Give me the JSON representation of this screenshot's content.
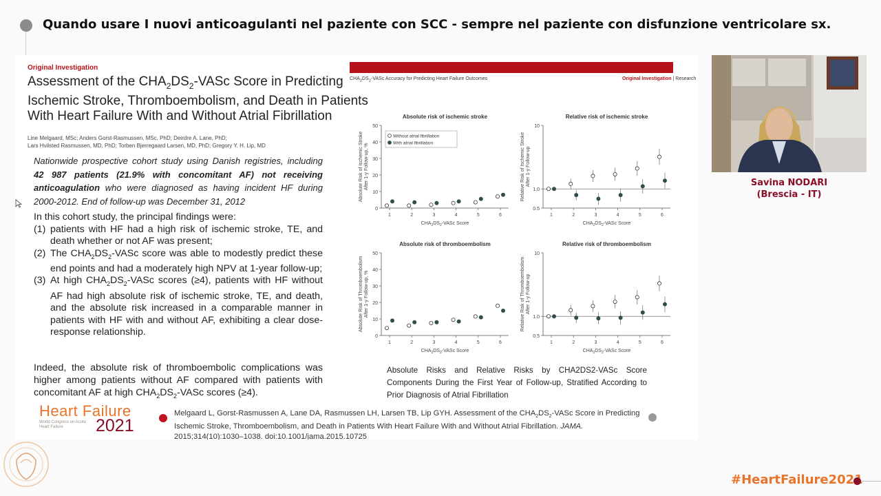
{
  "header": {
    "title": "Quando usare I nuovi anticoagulanti nel paziente con SCC - sempre nel paziente con disfunzione ventricolare sx."
  },
  "article": {
    "label": "Original Investigation",
    "title_parts": [
      "Assessment of the CHA",
      "2",
      "DS",
      "2",
      "-VASc Score in Predicting Ischemic Stroke, Thromboembolism, and Death in Patients With Heart Failure With and Without Atrial Fibrillation"
    ],
    "authors_line1": "Line Melgaard, MSc; Anders Gorst-Rasmussen, MSc, PhD; Deirdre A. Lane, PhD;",
    "authors_line2": "Lars Hvilsted Rasmussen, MD, PhD; Torben Bjerregaard Larsen, MD, PhD; Gregory Y. H. Lip, MD"
  },
  "summary": {
    "pre": "Nationwide prospective cohort study using Danish registries, including ",
    "bold1": "42 987 patients (21.9% with concomitant AF)",
    "mid": " ",
    "bold2": "not receiving anticoagulation",
    "post": " who were diagnosed as having incident HF during 2000-2012. End of follow-up was December 31, 2012"
  },
  "findings": {
    "intro": "In this cohort study, the principal findings were:",
    "items": [
      {
        "num": "(1)",
        "text": "patients with HF had a high risk of ischemic stroke, TE, and death whether or not AF was present;"
      },
      {
        "num": "(2)",
        "text_pre": "The CHA",
        "sub1": "2",
        "mid1": "DS",
        "sub2": "2",
        "text_post": "-VASc score was able to modestly predict these end points and had a moderately high NPV at 1-year follow-up;"
      },
      {
        "num": "(3)",
        "text_pre": "At high CHA",
        "sub1": "2",
        "mid1": "DS",
        "sub2": "2",
        "text_post": "-VASc scores (≥4), patients with HF without AF had high absolute risk of ischemic stroke, TE, and death, and the absolute risk increased in a comparable manner in patients with HF with and without AF, exhibiting a clear dose-response relationship."
      }
    ]
  },
  "indeed": {
    "pre": "Indeed, the absolute risk of thromboembolic complications was higher among patients without AF compared with patients with concomitant AF at high CHA",
    "sub1": "2",
    "mid": "DS",
    "sub2": "2",
    "post": "-VASc scores (≥4)."
  },
  "logo": {
    "word1": "Heart",
    "word2": "Failure",
    "subtitle": "World Congress on Acute Heart Failure",
    "year": "2021"
  },
  "reference": {
    "pre": "Melgaard L, Gorst-Rasmussen A, Lane DA, Rasmussen LH, Larsen TB, Lip GYH. Assessment of the CHA",
    "sub1": "2",
    "mid": "DS",
    "sub2": "2",
    "post": "-VASc Score in Predicting Ischemic Stroke, Thromboembolism, and Death in Patients With Heart Failure With and Without Atrial Fibrillation. ",
    "journal": "JAMA.",
    "tail": " 2015;314(10):1030–1038. doi:10.1001/jama.2015.10725"
  },
  "figure": {
    "header_left_pre": "CHA",
    "header_left_sub1": "2",
    "header_left_mid": "DS",
    "header_left_sub2": "2",
    "header_left_post": "-VASc Accuracy for Predicting Heart Failure Outcomes",
    "header_right_red": "Original Investigation",
    "header_right_black": "Research",
    "caption": "Absolute Risks and Relative Risks by CHA2DS2-VASc Score Components During the First Year of Follow-up, Stratified According to Prior Diagnosis of Atrial Fibrillation",
    "legend_without": "Without atrial fibrillation",
    "legend_with": "With atrial fibrillation",
    "xlabel": "CHA2DS2-VASc Score"
  },
  "chart_data": [
    {
      "type": "scatter",
      "title": "Absolute risk of ischemic stroke",
      "xlabel": "CHA2DS2-VASc Score",
      "ylabel": "Absolute Risk of Ischemic Stroke After 1-y Follow-up, %",
      "x": [
        1,
        2,
        3,
        4,
        5,
        6
      ],
      "ylim": [
        0,
        50
      ],
      "yticks": [
        0,
        10,
        20,
        30,
        40,
        50
      ],
      "series": [
        {
          "name": "Without atrial fibrillation",
          "values": [
            1.5,
            1.5,
            2,
            3,
            3.5,
            7
          ]
        },
        {
          "name": "With atrial fibrillation",
          "values": [
            4,
            3.5,
            3,
            4,
            5.5,
            8
          ]
        }
      ]
    },
    {
      "type": "scatter",
      "title": "Relative risk of ischemic stroke",
      "xlabel": "CHA2DS2-VASc Score",
      "ylabel": "Relative Risk of Ischemic Stroke After 1-y Follow-up",
      "x": [
        1,
        2,
        3,
        4,
        5,
        6
      ],
      "scale": "log",
      "yticks": [
        0.5,
        1.0,
        10
      ],
      "series": [
        {
          "name": "Without atrial fibrillation",
          "values": [
            1.0,
            1.2,
            1.6,
            1.7,
            2.1,
            3.2
          ]
        },
        {
          "name": "With atrial fibrillation",
          "values": [
            1.0,
            0.8,
            0.7,
            0.8,
            1.1,
            1.35
          ]
        }
      ]
    },
    {
      "type": "scatter",
      "title": "Absolute risk of thromboembolism",
      "xlabel": "CHA2DS2-VASc Score",
      "ylabel": "Absolute Risk of Thromboembolism After 1-y Follow-up, %",
      "x": [
        1,
        2,
        3,
        4,
        5,
        6
      ],
      "ylim": [
        0,
        50
      ],
      "yticks": [
        0,
        10,
        20,
        30,
        40,
        50
      ],
      "series": [
        {
          "name": "Without atrial fibrillation",
          "values": [
            4.5,
            6,
            7.5,
            9.5,
            11.5,
            18
          ]
        },
        {
          "name": "With atrial fibrillation",
          "values": [
            9,
            8,
            8,
            8.5,
            11,
            15
          ]
        }
      ]
    },
    {
      "type": "scatter",
      "title": "Relative risk of thromboembolism",
      "xlabel": "CHA2DS2-VASc Score",
      "ylabel": "Relative Risk of Thromboembolism After 1-y Follow-up",
      "x": [
        1,
        2,
        3,
        4,
        5,
        6
      ],
      "scale": "log",
      "yticks": [
        0.5,
        1.0,
        10
      ],
      "series": [
        {
          "name": "Without atrial fibrillation",
          "values": [
            1.0,
            1.25,
            1.45,
            1.7,
            2.0,
            3.3
          ]
        },
        {
          "name": "With atrial fibrillation",
          "values": [
            1.0,
            0.95,
            0.93,
            0.95,
            1.15,
            1.55
          ]
        }
      ]
    }
  ],
  "presenter": {
    "name": "Savina NODARI",
    "affiliation": "(Brescia - IT)"
  },
  "footer": {
    "hashtag": "#HeartFailure2021"
  },
  "colors": {
    "accent_red": "#b5121b",
    "brand_orange": "#e8742a",
    "brand_maroon": "#8a0e28",
    "point_fill": "#2f4f4f"
  }
}
